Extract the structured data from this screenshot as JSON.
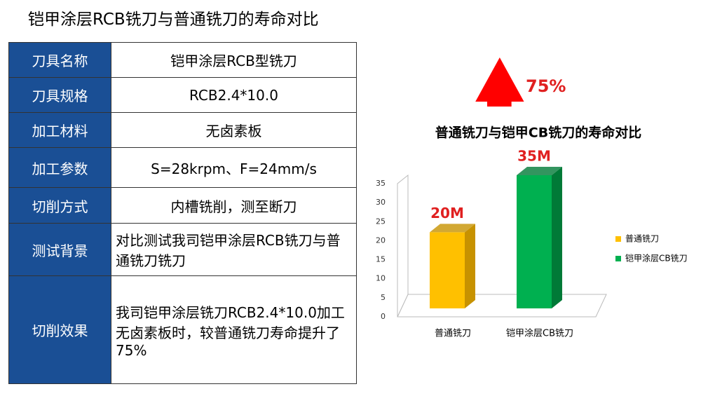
{
  "header": {
    "title": "铠甲涂层RCB铣刀与普通铣刀的寿命对比"
  },
  "table": {
    "rows": [
      [
        "刀具名称",
        "铠甲涂层RCB型铣刀"
      ],
      [
        "刀具规格",
        "RCB2.4*10.0"
      ],
      [
        "加工材料",
        "无卤素板"
      ],
      [
        "加工参数",
        "S=28krpm、F=24mm/s"
      ],
      [
        "切削方式",
        "内槽铣削，测至断刀"
      ],
      [
        "测试背景",
        "对比测试我司铠甲涂层RCB铣刀与普通铣刀铣刀"
      ],
      [
        "切削效果",
        "我司铠甲涂层铣刀RCB2.4*10.0加工无卤素板时，较普通铣刀寿命提升了75%"
      ]
    ]
  },
  "chart_data": {
    "type": "bar3d",
    "title": "普通铣刀与铠甲CB铣刀的寿命对比",
    "annotation": "75%",
    "categories": [
      "普通铣刀",
      "铠甲涂层CB铣刀"
    ],
    "series": [
      {
        "name": "普通铣刀",
        "color": "#ffc000",
        "values": [
          20,
          null
        ],
        "value_labels": [
          "20M",
          null
        ]
      },
      {
        "name": "铠甲涂层CB铣刀",
        "color": "#00b050",
        "values": [
          null,
          35
        ],
        "value_labels": [
          null,
          "35M"
        ]
      }
    ],
    "ylim": [
      0,
      35
    ],
    "yticks": [
      0,
      5,
      10,
      15,
      20,
      25,
      30,
      35
    ],
    "grid": false,
    "legend": "right"
  }
}
